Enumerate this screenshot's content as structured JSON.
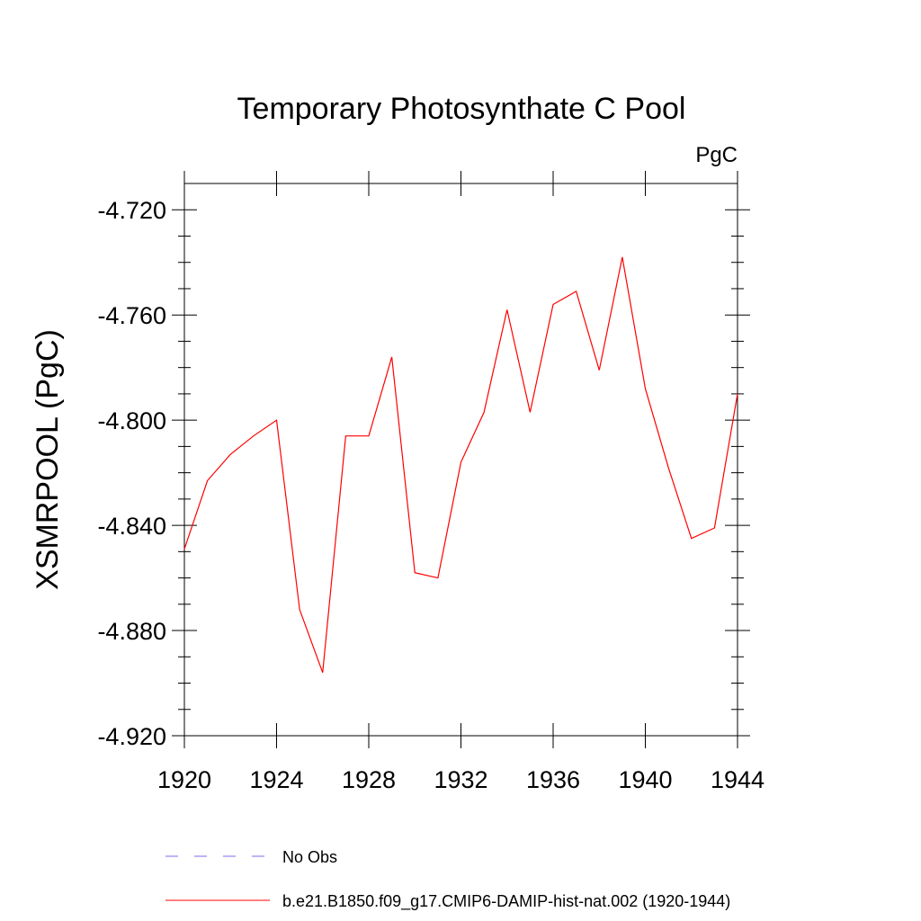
{
  "chart_data": {
    "type": "line",
    "title": "Temporary Photosynthate C Pool",
    "units_label": "PgC",
    "ylabel": "XSMRPOOL  (PgC)",
    "xlabel": "",
    "xlim": [
      1920,
      1944
    ],
    "ylim": [
      -4.92,
      -4.71
    ],
    "x_ticks": [
      1920,
      1924,
      1928,
      1932,
      1936,
      1940,
      1944
    ],
    "x_tick_labels": [
      "1920",
      "1924",
      "1928",
      "1932",
      "1936",
      "1940",
      "1944"
    ],
    "y_ticks": [
      -4.92,
      -4.88,
      -4.84,
      -4.8,
      -4.76,
      -4.72
    ],
    "y_tick_labels": [
      "-4.920",
      "-4.880",
      "-4.840",
      "-4.800",
      "-4.760",
      "-4.720"
    ],
    "grid": false,
    "legend_placement": "bottom",
    "series": [
      {
        "name": "No Obs",
        "color": "#7b68ee",
        "style": "dashed",
        "x": [],
        "values": []
      },
      {
        "name": "b.e21.B1850.f09_g17.CMIP6-DAMIP-hist-nat.002 (1920-1944)",
        "color": "#ff0000",
        "style": "solid",
        "x": [
          1920,
          1921,
          1922,
          1923,
          1924,
          1925,
          1926,
          1927,
          1928,
          1929,
          1930,
          1931,
          1932,
          1933,
          1934,
          1935,
          1936,
          1937,
          1938,
          1939,
          1940,
          1941,
          1942,
          1943,
          1944
        ],
        "values": [
          -4.849,
          -4.823,
          -4.813,
          -4.806,
          -4.8,
          -4.872,
          -4.896,
          -4.806,
          -4.806,
          -4.776,
          -4.858,
          -4.86,
          -4.816,
          -4.797,
          -4.758,
          -4.797,
          -4.756,
          -4.751,
          -4.781,
          -4.738,
          -4.788,
          -4.818,
          -4.845,
          -4.841,
          -4.79
        ]
      }
    ]
  }
}
